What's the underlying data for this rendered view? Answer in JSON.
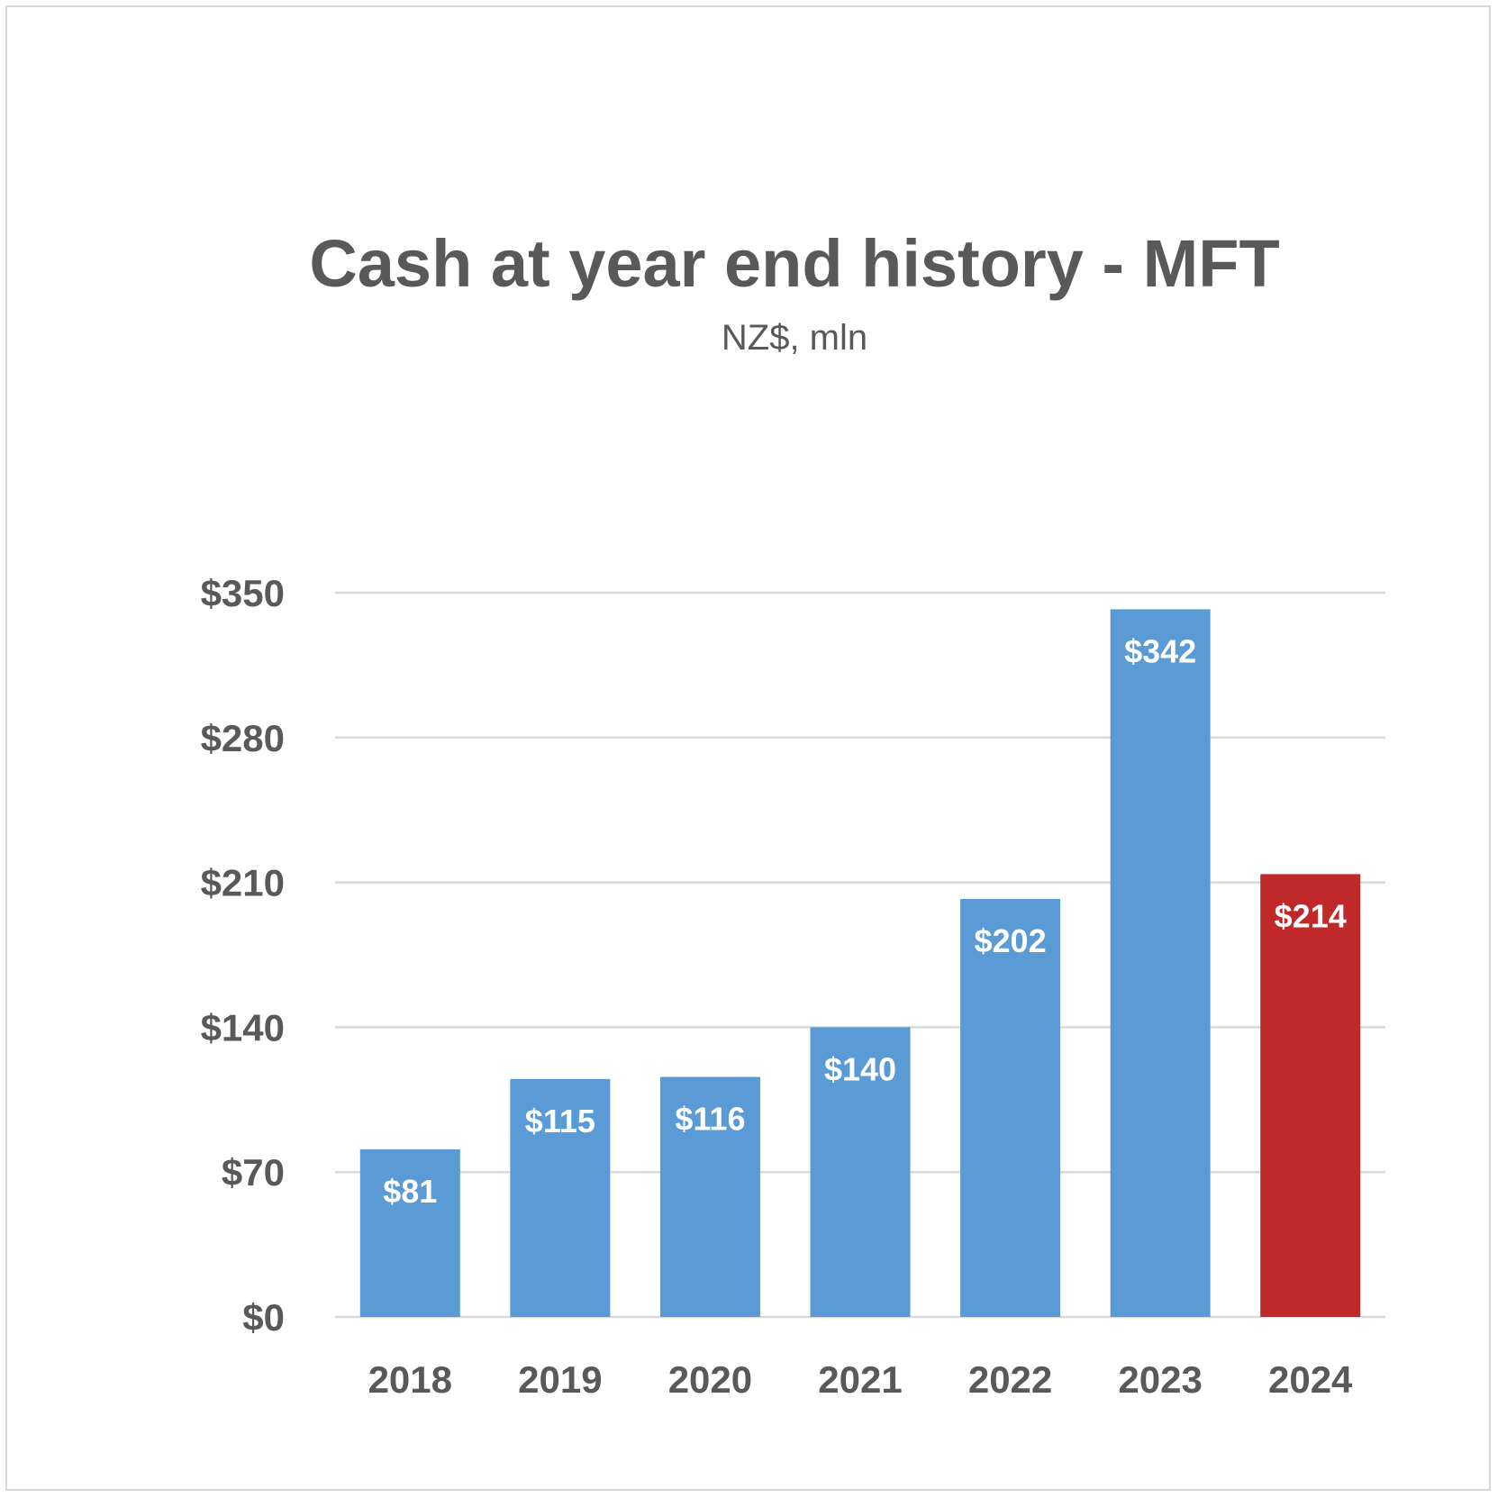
{
  "chart_data": {
    "type": "bar",
    "title": "Cash at year end history - MFT",
    "subtitle": "NZ$, mln",
    "categories": [
      "2018",
      "2019",
      "2020",
      "2021",
      "2022",
      "2023",
      "2024"
    ],
    "values": [
      81,
      115,
      116,
      140,
      202,
      342,
      214
    ],
    "data_labels": [
      "$81",
      "$115",
      "$116",
      "$140",
      "$202",
      "$342",
      "$214"
    ],
    "yticks": [
      0,
      70,
      140,
      210,
      280,
      350
    ],
    "ytick_labels": [
      "$0",
      "$70",
      "$140",
      "$210",
      "$280",
      "$350"
    ],
    "ylim": [
      0,
      350
    ],
    "grid": true,
    "legend": "none",
    "colors": [
      "#5b9bd5",
      "#5b9bd5",
      "#5b9bd5",
      "#5b9bd5",
      "#5b9bd5",
      "#5b9bd5",
      "#c0292a"
    ]
  }
}
